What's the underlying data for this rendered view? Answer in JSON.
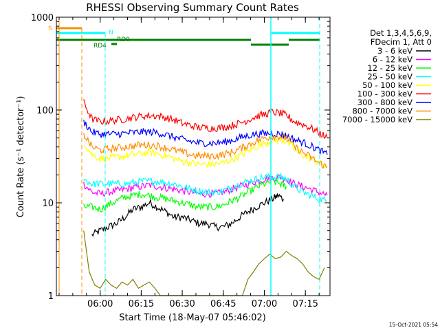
{
  "chart_data": {
    "type": "line",
    "title": "RHESSI Observing Summary Count Rates",
    "xlabel": "Start Time (18-May-07 05:46:02)",
    "ylabel": "Count Rate (s⁻¹ detector⁻¹)",
    "y_scale": "log",
    "ylim": [
      1,
      1000
    ],
    "xlim_minutes": [
      -2,
      98
    ],
    "x_ticks": [
      {
        "label": "06:00",
        "t": 14
      },
      {
        "label": "06:15",
        "t": 29
      },
      {
        "label": "06:30",
        "t": 44
      },
      {
        "label": "06:45",
        "t": 59
      },
      {
        "label": "07:00",
        "t": 74
      },
      {
        "label": "07:15",
        "t": 89
      }
    ],
    "y_ticks": [
      {
        "label": "1",
        "v": 1
      },
      {
        "label": "10",
        "v": 10
      },
      {
        "label": "100",
        "v": 100
      },
      {
        "label": "1000",
        "v": 1000
      }
    ],
    "legend_header": [
      "Det 1,3,4,5,6,9,",
      "FDecim 1, Att 0"
    ],
    "timestamp": "15-Oct-2021 05:54",
    "series": [
      {
        "name": "3 - 6 keV",
        "color": "#000000",
        "t": [
          11,
          14,
          17,
          20,
          23,
          26,
          29,
          32,
          35,
          38,
          41,
          44,
          47,
          50,
          53,
          56,
          59,
          62,
          65,
          68,
          71,
          74,
          77,
          79,
          81
        ],
        "values": [
          4.5,
          5,
          5.5,
          6,
          7,
          8.5,
          9,
          10,
          9,
          8,
          7,
          7,
          6.5,
          6,
          6,
          5.5,
          5.5,
          6,
          7,
          8,
          9,
          10,
          11,
          12,
          11
        ]
      },
      {
        "name": "6 - 12 keV",
        "color": "#ff00ff",
        "t": [
          8,
          11,
          14,
          17,
          20,
          23,
          26,
          29,
          32,
          35,
          38,
          41,
          44,
          47,
          50,
          53,
          56,
          59,
          62,
          65,
          68,
          71,
          74,
          77,
          80,
          82,
          85,
          88,
          91,
          94,
          97
        ],
        "values": [
          16,
          13,
          12.5,
          13,
          13.5,
          14,
          14.5,
          15,
          15.5,
          15,
          14.5,
          14,
          13.5,
          13,
          12.5,
          12.5,
          12.5,
          13,
          14,
          15,
          16,
          17,
          18,
          18.5,
          19,
          18,
          16,
          15,
          14,
          13,
          12
        ]
      },
      {
        "name": "12 - 25 keV",
        "color": "#00ff00",
        "t": [
          8,
          11,
          14,
          17,
          20,
          23,
          26,
          29,
          32,
          35,
          38,
          41,
          44,
          47,
          50,
          53,
          56,
          59,
          62,
          65,
          68,
          71,
          74,
          77,
          80,
          82
        ],
        "values": [
          9,
          9,
          8.5,
          9.5,
          10.5,
          11.5,
          12,
          12.5,
          12,
          11.5,
          11,
          10.5,
          10,
          9.5,
          9,
          9,
          9,
          9.5,
          10.5,
          11.5,
          13,
          14.5,
          16,
          17,
          16,
          15
        ]
      },
      {
        "name": "25 - 50 keV",
        "color": "#00ffff",
        "t": [
          8,
          11,
          14,
          17,
          20,
          23,
          26,
          29,
          32,
          35,
          38,
          41,
          44,
          47,
          50,
          53,
          56,
          59,
          62,
          65,
          68,
          71,
          74,
          77,
          80,
          82,
          85,
          88,
          91,
          94,
          97
        ],
        "values": [
          18,
          16,
          16,
          16,
          16,
          16,
          16.5,
          17,
          17,
          17,
          16.5,
          16,
          15,
          14,
          13.5,
          13,
          13,
          13.5,
          14.5,
          16,
          17,
          18,
          19,
          19,
          19,
          18,
          15,
          13,
          12,
          11,
          10.5
        ]
      },
      {
        "name": "50 - 100 keV",
        "color": "#ffff00",
        "t": [
          8,
          11,
          14,
          17,
          20,
          23,
          26,
          29,
          32,
          35,
          38,
          41,
          44,
          47,
          50,
          53,
          56,
          59,
          62,
          65,
          68,
          71,
          74,
          77,
          80,
          82,
          85,
          88,
          91,
          94,
          97
        ],
        "values": [
          45,
          33,
          30,
          30,
          31,
          32,
          33,
          34,
          35,
          34,
          32,
          30,
          28,
          27,
          26,
          26,
          26,
          27,
          29,
          32,
          36,
          40,
          44,
          47,
          48,
          46,
          38,
          33,
          30,
          27,
          24
        ]
      },
      {
        "name": "100 - 300 keV",
        "color": "#ff0000",
        "t": [
          8,
          11,
          14,
          17,
          20,
          23,
          26,
          29,
          32,
          35,
          38,
          41,
          44,
          47,
          50,
          53,
          56,
          59,
          62,
          65,
          68,
          71,
          74,
          77,
          80,
          82,
          85,
          88,
          91,
          94,
          97
        ],
        "values": [
          120,
          80,
          75,
          76,
          78,
          80,
          83,
          86,
          87,
          86,
          83,
          78,
          72,
          68,
          65,
          64,
          64,
          65,
          68,
          72,
          78,
          85,
          90,
          95,
          92,
          88,
          75,
          70,
          64,
          57,
          50
        ]
      },
      {
        "name": "300 - 800 keV",
        "color": "#0000ff",
        "t": [
          8,
          11,
          14,
          17,
          20,
          23,
          26,
          29,
          32,
          35,
          38,
          41,
          44,
          47,
          50,
          53,
          56,
          59,
          62,
          65,
          68,
          71,
          74,
          77,
          80,
          82,
          85,
          88,
          91,
          94,
          97
        ],
        "values": [
          75,
          58,
          55,
          55,
          55,
          56,
          57,
          58,
          58,
          57,
          54,
          51,
          48,
          46,
          44,
          44,
          44,
          45,
          47,
          50,
          53,
          55,
          56,
          56,
          55,
          53,
          48,
          45,
          41,
          37,
          33
        ]
      },
      {
        "name": "800 - 7000 keV",
        "color": "#ff8c00",
        "t": [
          8,
          11,
          14,
          17,
          20,
          23,
          26,
          29,
          32,
          35,
          38,
          41,
          44,
          47,
          50,
          53,
          56,
          59,
          62,
          65,
          68,
          71,
          74,
          77,
          80,
          82,
          85,
          88,
          91,
          94,
          97
        ],
        "values": [
          55,
          40,
          37,
          38,
          39,
          40,
          41,
          42,
          42,
          41,
          39,
          37,
          35,
          33,
          32,
          32,
          32,
          33,
          35,
          38,
          42,
          46,
          50,
          52,
          52,
          50,
          40,
          35,
          31,
          27,
          24
        ]
      },
      {
        "name": "7000 - 15000 keV",
        "color": "#808000",
        "t": [
          8,
          10,
          12,
          14,
          16,
          18,
          20,
          22,
          24,
          26,
          28,
          30,
          32,
          34,
          36,
          38,
          40,
          42,
          44,
          46,
          48,
          50,
          52,
          54,
          56,
          58,
          60,
          62,
          64,
          66,
          68,
          70,
          72,
          74,
          76,
          78,
          80,
          82,
          84,
          86,
          88,
          90,
          92,
          94,
          96
        ],
        "values": [
          5,
          1.8,
          1.3,
          1.2,
          1.5,
          1.3,
          1.2,
          1.4,
          1.3,
          1.5,
          1.2,
          1.3,
          1.4,
          1.2,
          1,
          1,
          1,
          1,
          1,
          1,
          1,
          1,
          1,
          1,
          1,
          1,
          1,
          1,
          1,
          1,
          1.5,
          1.8,
          2.2,
          2.5,
          2.8,
          2.5,
          2.6,
          3,
          2.7,
          2.5,
          2.2,
          1.8,
          1.6,
          1.5,
          2
        ]
      }
    ],
    "annotations": [
      {
        "label": "S",
        "color": "#ff8c00"
      },
      {
        "label": "N",
        "color": "#00ffff"
      },
      {
        "label": "RD0",
        "color": "#008000"
      },
      {
        "label": "RD4",
        "color": "#008000"
      }
    ]
  }
}
